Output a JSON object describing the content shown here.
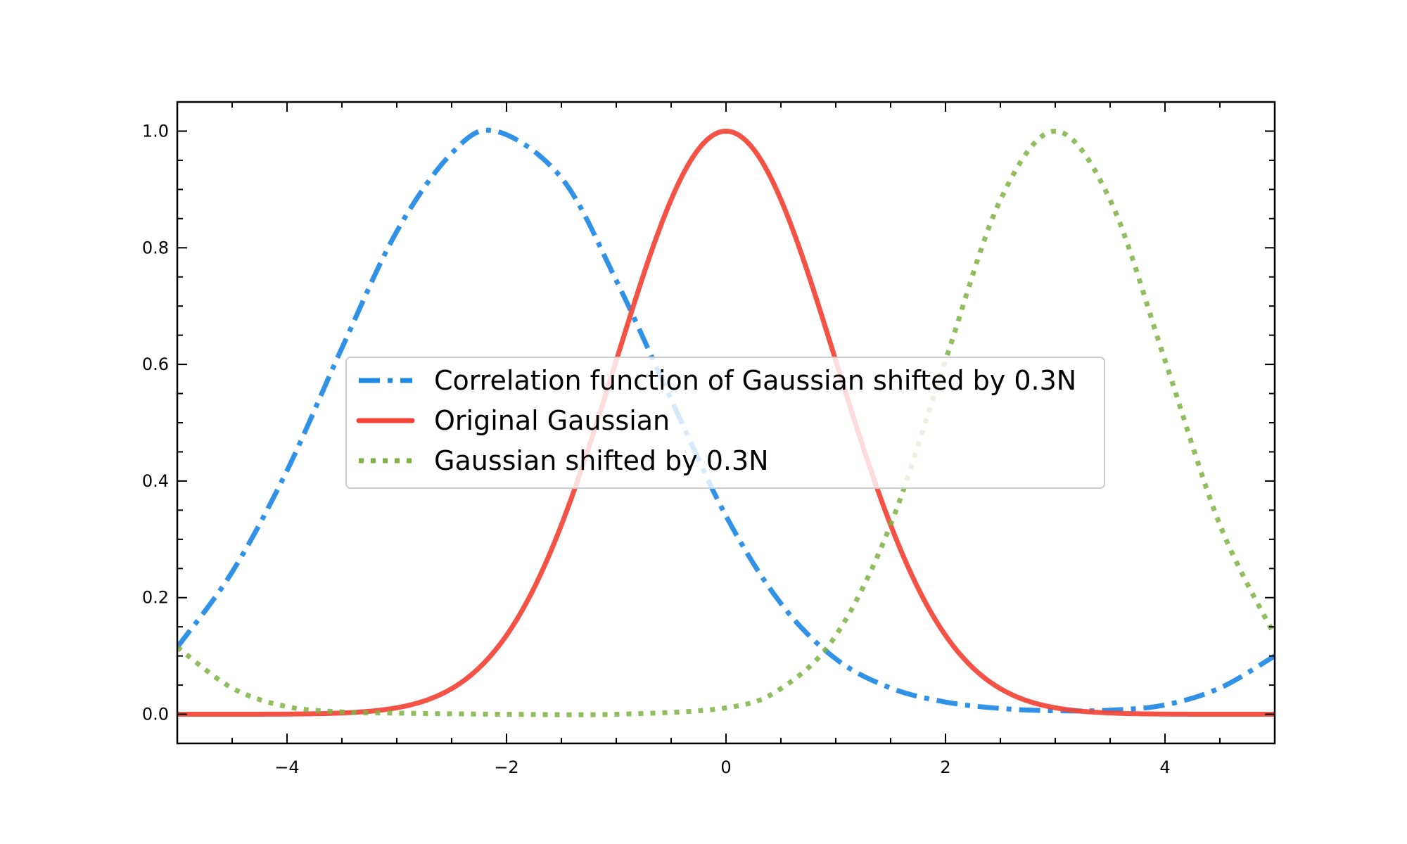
{
  "chart_data": {
    "type": "line",
    "title": "",
    "xlabel": "",
    "ylabel": "",
    "xlim": [
      -5,
      5
    ],
    "ylim": [
      -0.05,
      1.05
    ],
    "x_major_ticks": [
      -4,
      -2,
      0,
      2,
      4
    ],
    "x_tick_labels": [
      "−4",
      "−2",
      "0",
      "2",
      "4"
    ],
    "x_minor_step": 0.5,
    "y_major_ticks": [
      0.0,
      0.2,
      0.4,
      0.6,
      0.8,
      1.0
    ],
    "y_tick_labels": [
      "0.0",
      "0.2",
      "0.4",
      "0.6",
      "0.8",
      "1.0"
    ],
    "y_minor_step": 0.05,
    "tick_direction": "in",
    "grid": false,
    "legend_position": "center",
    "series": [
      {
        "name": "Correlation function of Gaussian shifted by 0.3N",
        "color": "#1e88e5",
        "style": "dashdot",
        "x": [
          -5.0,
          -4.5,
          -4.0,
          -3.5,
          -3.0,
          -2.5,
          -2.1,
          -1.5,
          -1.0,
          -0.5,
          0.0,
          0.5,
          1.0,
          1.5,
          2.0,
          2.5,
          3.0,
          3.5,
          4.0,
          4.5,
          5.0
        ],
        "y": [
          0.115,
          0.244,
          0.418,
          0.628,
          0.828,
          0.962,
          1.0,
          0.92,
          0.744,
          0.54,
          0.34,
          0.19,
          0.095,
          0.045,
          0.021,
          0.01,
          0.006,
          0.007,
          0.016,
          0.045,
          0.1
        ]
      },
      {
        "name": "Original Gaussian",
        "color": "#f44336",
        "style": "solid",
        "x": [
          -5.0,
          -4.0,
          -3.5,
          -3.0,
          -2.5,
          -2.0,
          -1.5,
          -1.0,
          -0.5,
          0.0,
          0.5,
          1.0,
          1.5,
          2.0,
          2.5,
          3.0,
          3.5,
          4.0,
          5.0
        ],
        "y": [
          0.0,
          0.001,
          0.003,
          0.011,
          0.044,
          0.135,
          0.325,
          0.607,
          0.882,
          1.0,
          0.882,
          0.607,
          0.325,
          0.135,
          0.044,
          0.011,
          0.003,
          0.001,
          0.0
        ],
        "smooth": true
      },
      {
        "name": "Gaussian shifted by 0.3N",
        "color": "#7cb342",
        "style": "dotted",
        "x": [
          -5.0,
          -4.5,
          -4.0,
          -3.5,
          -3.0,
          -2.0,
          -1.0,
          0.0,
          0.5,
          1.0,
          1.5,
          2.0,
          2.5,
          3.0,
          3.5,
          4.0,
          4.5,
          5.0
        ],
        "y": [
          0.115,
          0.045,
          0.013,
          0.004,
          0.002,
          0.0,
          0.0,
          0.011,
          0.044,
          0.135,
          0.325,
          0.607,
          0.882,
          1.0,
          0.882,
          0.607,
          0.325,
          0.135
        ]
      }
    ]
  }
}
